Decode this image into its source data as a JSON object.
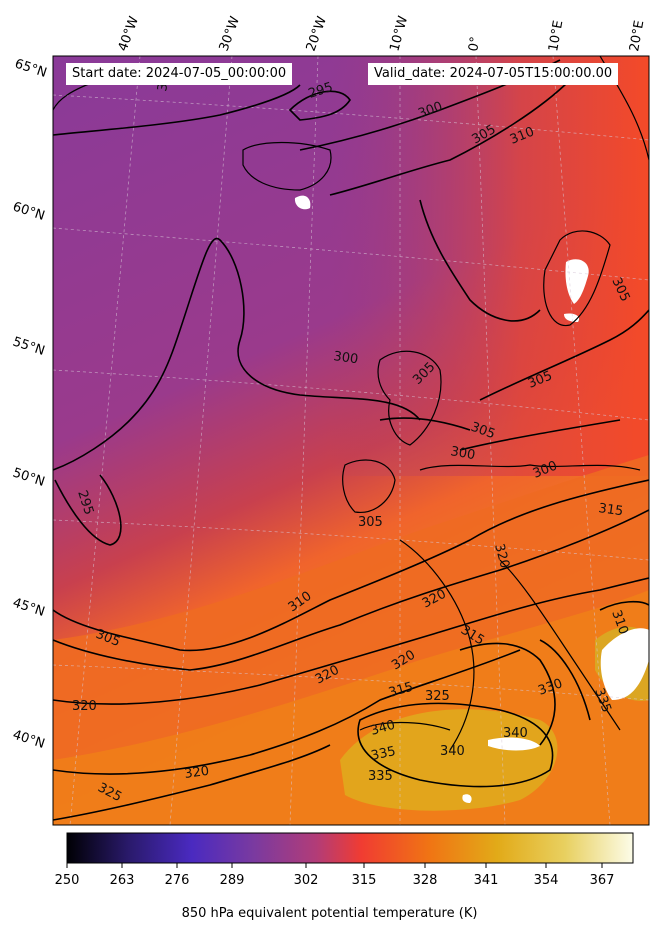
{
  "header": {
    "start_date": "Start date: 2024-07-05_00:00:00",
    "valid_date": "Valid_date: 2024-07-05T15:00:00.00"
  },
  "map": {
    "lon_labels": [
      "40°W",
      "30°W",
      "20°W",
      "10°W",
      "0°",
      "10°E",
      "20°E"
    ],
    "lat_labels": [
      "65°N",
      "60°N",
      "55°N",
      "50°N",
      "45°N",
      "40°N"
    ],
    "contour_labels": [
      "295",
      "300",
      "305",
      "310",
      "315",
      "320",
      "325",
      "330",
      "335",
      "340"
    ]
  },
  "colorbar": {
    "title": "850 hPa equivalent potential temperature (K)",
    "ticks": [
      "250",
      "263",
      "276",
      "289",
      "302",
      "315",
      "328",
      "341",
      "354",
      "367"
    ],
    "colors": [
      "#000004",
      "#2a1a6c",
      "#4a2ac0",
      "#7a3aa0",
      "#b23c78",
      "#f03c32",
      "#f07414",
      "#e2aa18",
      "#e8d060",
      "#fcfce8"
    ]
  }
}
